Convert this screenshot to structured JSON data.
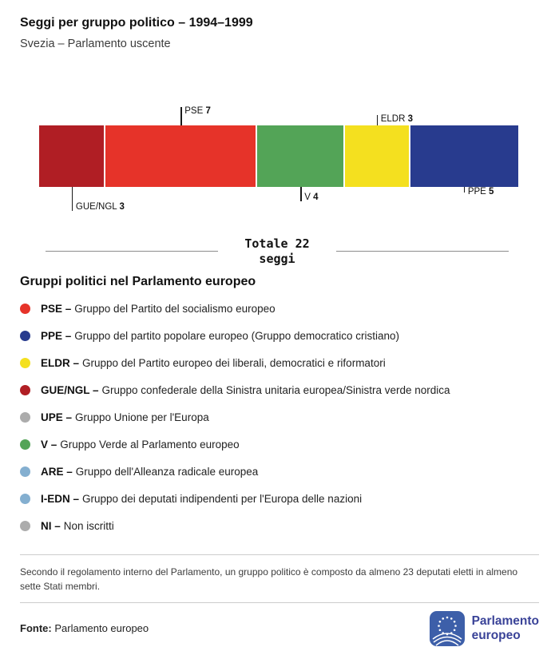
{
  "header": {
    "title": "Seggi per gruppo politico – 1994–1999",
    "subtitle": "Svezia – Parlamento uscente"
  },
  "chart_data": {
    "type": "bar",
    "variant": "horizontal-stacked-seats",
    "title": "Seggi per gruppo politico – 1994–1999",
    "region": "Svezia – Parlamento uscente",
    "total_seats": 22,
    "total_label_line1": "Totale 22",
    "total_label_line2": "seggi",
    "segments": [
      {
        "label": "GUE/NGL",
        "value": 3,
        "color": "#B01E24",
        "callout_side": "below",
        "callout_line": 30
      },
      {
        "label": "PSE",
        "value": 7,
        "color": "#E63329",
        "callout_side": "above",
        "callout_line": 23
      },
      {
        "label": "V",
        "value": 4,
        "color": "#53A457",
        "callout_side": "below",
        "callout_line": 18
      },
      {
        "label": "ELDR",
        "value": 3,
        "color": "#F4E01F",
        "callout_side": "above",
        "callout_line": 13
      },
      {
        "label": "PPE",
        "value": 5,
        "color": "#283B8E",
        "callout_side": "below",
        "callout_line": 7
      }
    ]
  },
  "legend": {
    "title": "Gruppi politici nel Parlamento europeo",
    "items": [
      {
        "label": "PSE –",
        "description": "Gruppo del Partito del socialismo europeo",
        "color": "#E63329"
      },
      {
        "label": "PPE –",
        "description": "Gruppo del partito popolare europeo (Gruppo democratico cristiano)",
        "color": "#283B8E"
      },
      {
        "label": "ELDR –",
        "description": "Gruppo del Partito europeo dei liberali, democratici e riformatori",
        "color": "#F4E01F"
      },
      {
        "label": "GUE/NGL –",
        "description": "Gruppo confederale della Sinistra unitaria europea/Sinistra verde nordica",
        "color": "#B01E24"
      },
      {
        "label": "UPE –",
        "description": "Gruppo Unione per l'Europa",
        "color": "#ACACAC"
      },
      {
        "label": "V –",
        "description": "Gruppo Verde al Parlamento europeo",
        "color": "#53A457"
      },
      {
        "label": "ARE –",
        "description": "Gruppo dell'Alleanza radicale europea",
        "color": "#84AFD0"
      },
      {
        "label": "I-EDN –",
        "description": "Gruppo dei deputati indipendenti per l'Europa delle nazioni",
        "color": "#84AFD0"
      },
      {
        "label": "NI –",
        "description": "Non iscritti",
        "color": "#ACACAC"
      }
    ]
  },
  "footnote": "Secondo il regolamento interno del Parlamento, un gruppo politico è composto da almeno 23 deputati eletti in almeno sette Stati membri.",
  "footer": {
    "source_label": "Fonte:",
    "source_text": "Parlamento europeo",
    "logo_line1": "Parlamento",
    "logo_line2": "europeo"
  }
}
